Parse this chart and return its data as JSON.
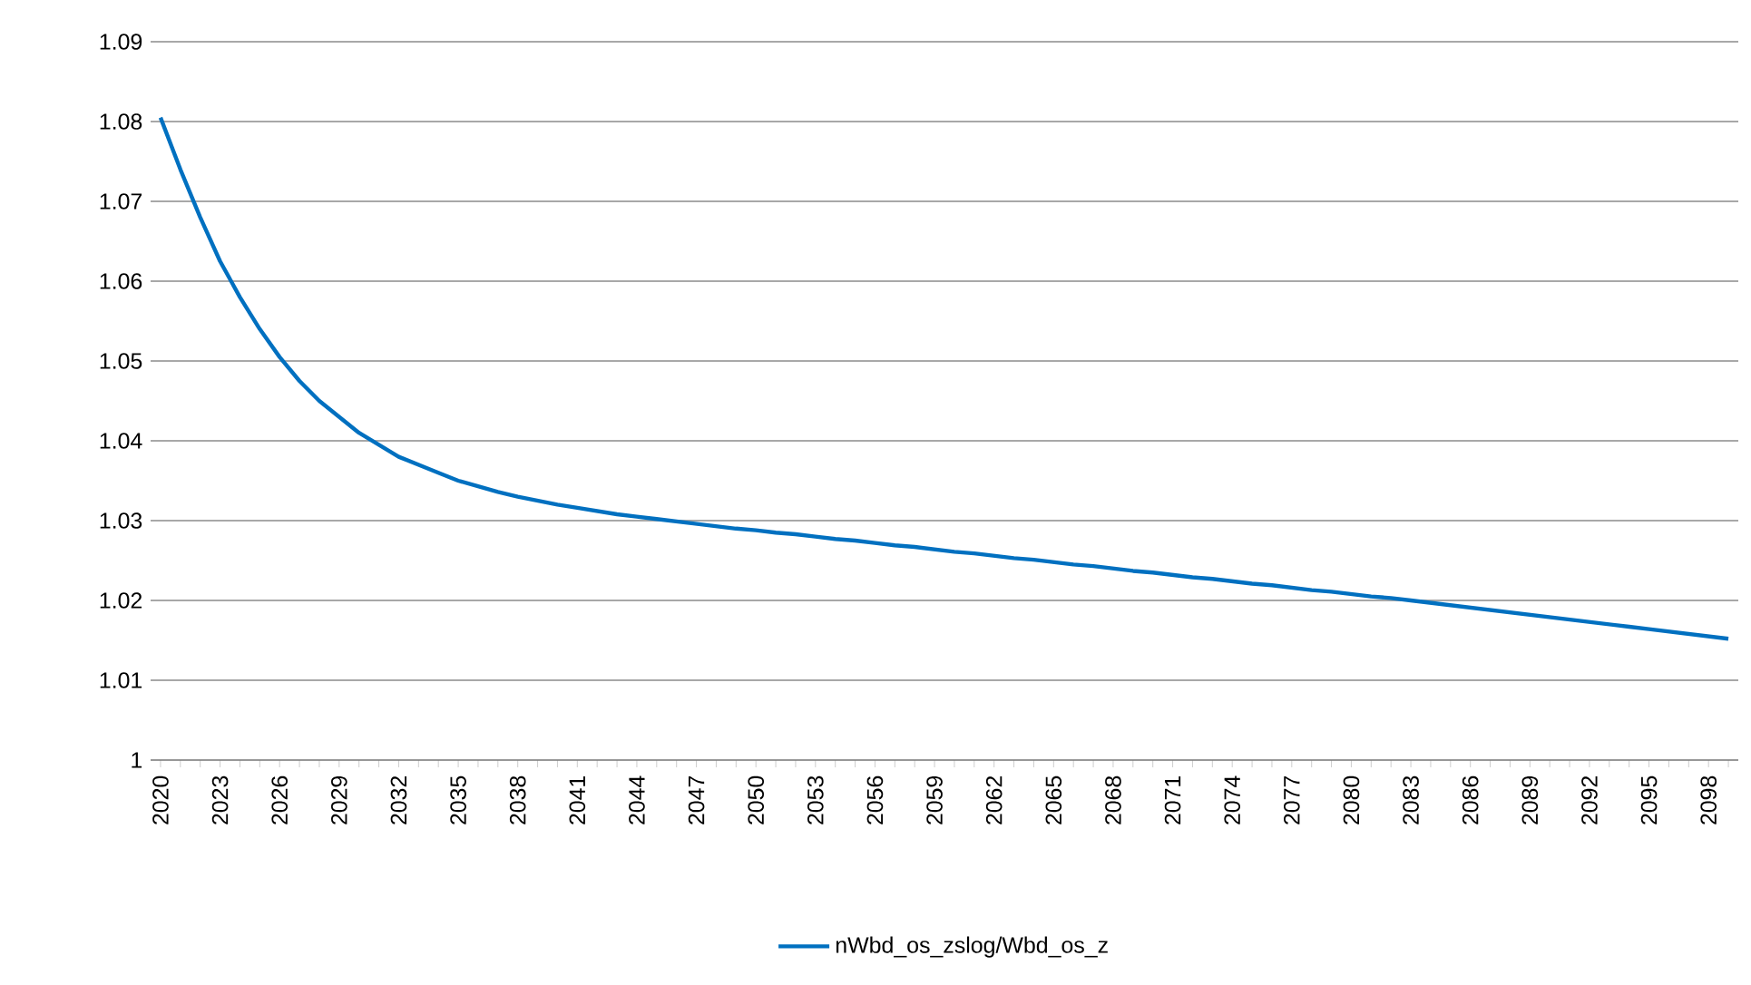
{
  "chart_data": {
    "type": "line",
    "categories": [
      "2020",
      null,
      null,
      "2023",
      null,
      null,
      "2026",
      null,
      null,
      "2029",
      null,
      null,
      "2032",
      null,
      null,
      "2035",
      null,
      null,
      "2038",
      null,
      null,
      "2041",
      null,
      null,
      "2044",
      null,
      null,
      "2047",
      null,
      null,
      "2050",
      null,
      null,
      "2053",
      null,
      null,
      "2056",
      null,
      null,
      "2059",
      null,
      null,
      "2062",
      null,
      null,
      "2065",
      null,
      null,
      "2068",
      null,
      null,
      "2071",
      null,
      null,
      "2074",
      null,
      null,
      "2077",
      null,
      null,
      "2080",
      null,
      null,
      "2083",
      null,
      null,
      "2086",
      null,
      null,
      "2089",
      null,
      null,
      "2092",
      null,
      null,
      "2095",
      null,
      null,
      "2098",
      null
    ],
    "series": [
      {
        "name": "nWbd_os_zslog/Wbd_os_z",
        "color": "#0070c0",
        "values": [
          1.0805,
          1.074,
          1.068,
          1.0625,
          1.058,
          1.054,
          1.0505,
          1.0475,
          1.045,
          1.043,
          1.041,
          1.0395,
          1.038,
          1.037,
          1.036,
          1.035,
          1.0343,
          1.0336,
          1.033,
          1.0325,
          1.032,
          1.0316,
          1.0312,
          1.0308,
          1.0305,
          1.0302,
          1.0299,
          1.0296,
          1.0293,
          1.029,
          1.0288,
          1.0285,
          1.0283,
          1.028,
          1.0277,
          1.0275,
          1.0272,
          1.0269,
          1.0267,
          1.0264,
          1.0261,
          1.0259,
          1.0256,
          1.0253,
          1.0251,
          1.0248,
          1.0245,
          1.0243,
          1.024,
          1.0237,
          1.0235,
          1.0232,
          1.0229,
          1.0227,
          1.0224,
          1.0221,
          1.0219,
          1.0216,
          1.0213,
          1.0211,
          1.0208,
          1.0205,
          1.0203,
          1.02,
          1.0197,
          1.0194,
          1.0191,
          1.0188,
          1.0185,
          1.0182,
          1.0179,
          1.0176,
          1.0173,
          1.017,
          1.0167,
          1.0164,
          1.0161,
          1.0158,
          1.0155,
          1.0152
        ]
      }
    ],
    "ylim": [
      1,
      1.09
    ],
    "yticks": [
      1,
      1.01,
      1.02,
      1.03,
      1.04,
      1.05,
      1.06,
      1.07,
      1.08,
      1.09
    ],
    "grid": "y",
    "legend": "bottom",
    "marker": "none",
    "line_style": "solid"
  }
}
